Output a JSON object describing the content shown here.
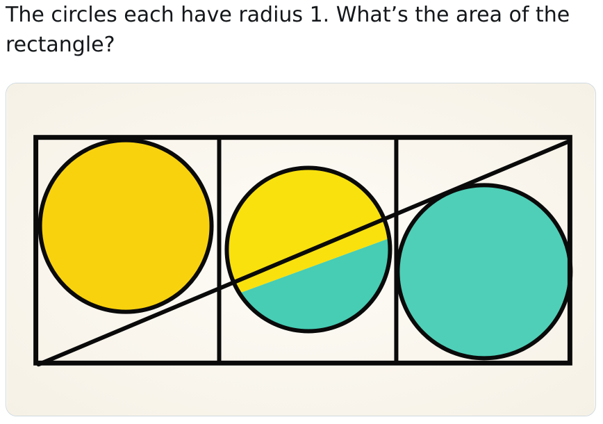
{
  "post": {
    "text": "The circles each have radius 1. What’s the area of the rectangle?"
  },
  "figure": {
    "circle_radius": 1,
    "colors": {
      "paper": "#fdfaf4",
      "outline": "#0a0a0a",
      "yellow": "#f9d20e",
      "teal": "#46cdb4"
    },
    "circles": [
      {
        "name": "left-circle",
        "fill": "yellow"
      },
      {
        "name": "middle-circle",
        "fill": "split-yellow-teal"
      },
      {
        "name": "right-circle",
        "fill": "teal"
      }
    ]
  }
}
